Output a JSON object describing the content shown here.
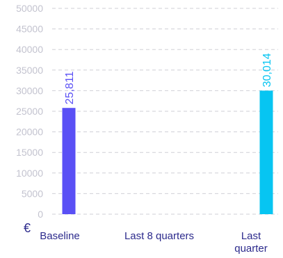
{
  "chart_data": {
    "type": "bar",
    "currency_symbol": "€",
    "categories": [
      {
        "label_lines": [
          "Baseline"
        ]
      },
      {
        "label_lines": [
          "Last 8 quarters"
        ]
      },
      {
        "label_lines": [
          "Last",
          "quarter"
        ]
      }
    ],
    "values": [
      25811,
      null,
      30014
    ],
    "value_labels": [
      "25,811",
      "",
      "30,014"
    ],
    "bar_colors": [
      "#5a50f5",
      "",
      "#07c5f2"
    ],
    "y_ticks": [
      "0",
      "5000",
      "10000",
      "15000",
      "20000",
      "25000",
      "30000",
      "35000",
      "40000",
      "45000",
      "50000"
    ],
    "ylim": [
      0,
      50000
    ],
    "grid": true,
    "title": "",
    "xlabel": "",
    "ylabel": ""
  }
}
